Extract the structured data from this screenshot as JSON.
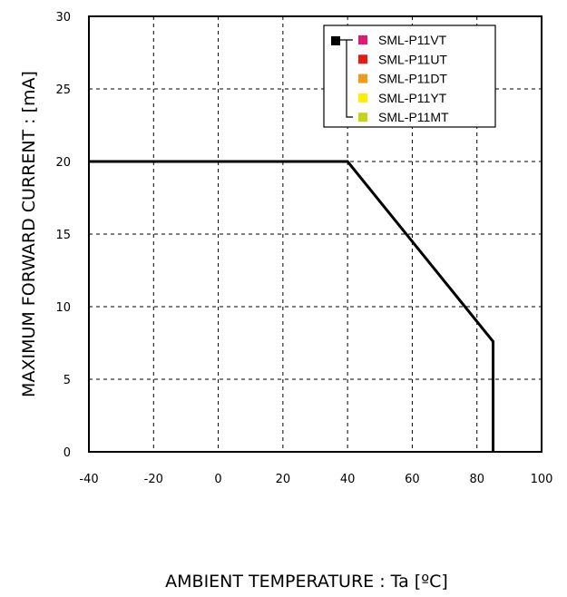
{
  "chart_data": {
    "type": "line",
    "title": "",
    "xlabel": "AMBIENT TEMPERATURE : Ta [ºC]",
    "ylabel": "MAXIMUM FORWARD CURRENT :  [mA]",
    "xlim": [
      -40,
      100
    ],
    "ylim": [
      0,
      30
    ],
    "x_ticks": [
      "-40",
      "-20",
      "0",
      "20",
      "40",
      "60",
      "80",
      "100"
    ],
    "y_ticks": [
      "0",
      "5",
      "10",
      "15",
      "20",
      "25",
      "30"
    ],
    "grid": true,
    "legend_position": "top-right",
    "series": [
      {
        "color": "#000000",
        "x": [
          -40,
          40,
          85,
          85
        ],
        "y": [
          20,
          20,
          7.6,
          0
        ]
      }
    ],
    "legend": {
      "marker_color": "#000000",
      "items": [
        {
          "label": "SML-P11VT",
          "color": "#e8176d"
        },
        {
          "label": "SML-P11UT",
          "color": "#e31b13"
        },
        {
          "label": "SML-P11DT",
          "color": "#f39a17"
        },
        {
          "label": "SML-P11YT",
          "color": "#ffee00"
        },
        {
          "label": "SML-P11MT",
          "color": "#c6d419"
        }
      ]
    }
  }
}
